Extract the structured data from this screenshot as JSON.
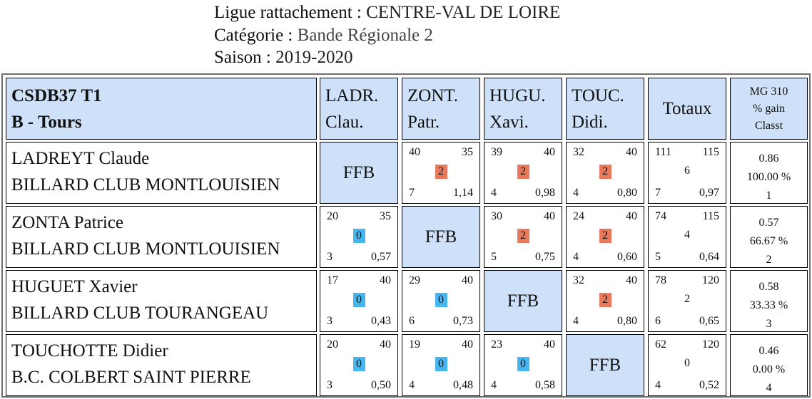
{
  "header": {
    "ligue_label": "Ligue rattachement :",
    "ligue_value": "CENTRE-VAL DE LOIRE",
    "categorie_label": "Catégorie :",
    "categorie_value": "Bande Régionale 2",
    "saison_label": "Saison :",
    "saison_value": "2019-2020"
  },
  "group": {
    "line1": "CSDB37 T1",
    "line2": "B - Tours"
  },
  "columns": [
    {
      "line1": "LADR.",
      "line2": "Clau."
    },
    {
      "line1": "ZONT.",
      "line2": "Patr."
    },
    {
      "line1": "HUGU.",
      "line2": "Xavi."
    },
    {
      "line1": "TOUC.",
      "line2": "Didi."
    }
  ],
  "totals_label": "Totaux",
  "mg_header": {
    "line1": "MG 310",
    "line2": "% gain",
    "line3": "Classt"
  },
  "self_label": "FFB",
  "badge_colors": {
    "win": "#e87a5b",
    "loss": "#45b6ef",
    "header": "#cfe1f9"
  },
  "rows": [
    {
      "name": "LADREYT Claude",
      "club": "BILLARD CLUB MONTLOUISIEN",
      "matches": [
        null,
        {
          "points": "40",
          "target": "35",
          "result": "2",
          "innings": "7",
          "avg": "1,14"
        },
        {
          "points": "39",
          "target": "40",
          "result": "2",
          "innings": "4",
          "avg": "0,98"
        },
        {
          "points": "32",
          "target": "40",
          "result": "2",
          "innings": "4",
          "avg": "0,80"
        }
      ],
      "totals": {
        "points": "111",
        "target": "115",
        "result": "6",
        "innings": "7",
        "avg": "0,97"
      },
      "mg": {
        "avg": "0.86",
        "pct": "100.00 %",
        "rank": "1"
      }
    },
    {
      "name": "ZONTA Patrice",
      "club": "BILLARD CLUB MONTLOUISIEN",
      "matches": [
        {
          "points": "20",
          "target": "35",
          "result": "0",
          "innings": "3",
          "avg": "0,57"
        },
        null,
        {
          "points": "30",
          "target": "40",
          "result": "2",
          "innings": "5",
          "avg": "0,75"
        },
        {
          "points": "24",
          "target": "40",
          "result": "2",
          "innings": "4",
          "avg": "0,60"
        }
      ],
      "totals": {
        "points": "74",
        "target": "115",
        "result": "4",
        "innings": "5",
        "avg": "0,64"
      },
      "mg": {
        "avg": "0.57",
        "pct": "66.67 %",
        "rank": "2"
      }
    },
    {
      "name": "HUGUET Xavier",
      "club": "BILLARD CLUB TOURANGEAU",
      "matches": [
        {
          "points": "17",
          "target": "40",
          "result": "0",
          "innings": "3",
          "avg": "0,43"
        },
        {
          "points": "29",
          "target": "40",
          "result": "0",
          "innings": "6",
          "avg": "0,73"
        },
        null,
        {
          "points": "32",
          "target": "40",
          "result": "2",
          "innings": "4",
          "avg": "0,80"
        }
      ],
      "totals": {
        "points": "78",
        "target": "120",
        "result": "2",
        "innings": "6",
        "avg": "0,65"
      },
      "mg": {
        "avg": "0.58",
        "pct": "33.33 %",
        "rank": "3"
      }
    },
    {
      "name": "TOUCHOTTE Didier",
      "club": "B.C. COLBERT SAINT PIERRE",
      "matches": [
        {
          "points": "20",
          "target": "40",
          "result": "0",
          "innings": "3",
          "avg": "0,50"
        },
        {
          "points": "19",
          "target": "40",
          "result": "0",
          "innings": "4",
          "avg": "0,48"
        },
        {
          "points": "23",
          "target": "40",
          "result": "0",
          "innings": "4",
          "avg": "0,58"
        },
        null
      ],
      "totals": {
        "points": "62",
        "target": "120",
        "result": "0",
        "innings": "4",
        "avg": "0,52"
      },
      "mg": {
        "avg": "0.46",
        "pct": "0.00 %",
        "rank": "4"
      }
    }
  ]
}
